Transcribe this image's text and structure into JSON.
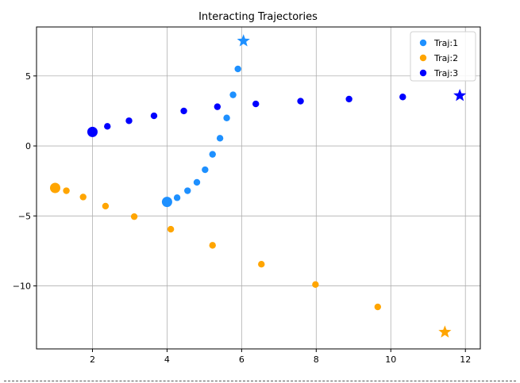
{
  "chart_data": {
    "type": "scatter",
    "title": "Interacting Trajectories",
    "xlabel": "",
    "ylabel": "",
    "xlim": [
      0.5,
      12.4
    ],
    "ylim": [
      -14.5,
      8.5
    ],
    "xticks": [
      2,
      4,
      6,
      8,
      10,
      12
    ],
    "yticks": [
      5,
      0,
      -5,
      -10
    ],
    "xtick_labels": [
      "2",
      "4",
      "6",
      "8",
      "10",
      "12"
    ],
    "ytick_labels": [
      "5",
      "0",
      "−5",
      "−10"
    ],
    "grid": true,
    "legend_position": "top-right",
    "series": [
      {
        "name": "Traj:1",
        "color": "#1e90ff",
        "start": [
          4.0,
          -4.0
        ],
        "end": [
          6.05,
          7.5
        ],
        "x": [
          4.27,
          4.55,
          4.8,
          5.02,
          5.22,
          5.42,
          5.6,
          5.77,
          5.9
        ],
        "y": [
          -3.7,
          -3.2,
          -2.6,
          -1.7,
          -0.6,
          0.55,
          2.0,
          3.65,
          5.5
        ]
      },
      {
        "name": "Traj:2",
        "color": "#ffa500",
        "start": [
          1.0,
          -3.0
        ],
        "end": [
          11.45,
          -13.3
        ],
        "x": [
          1.3,
          1.75,
          2.35,
          3.12,
          4.1,
          5.22,
          6.53,
          7.98,
          9.65
        ],
        "y": [
          -3.2,
          -3.65,
          -4.3,
          -5.05,
          -5.95,
          -7.1,
          -8.45,
          -9.9,
          -11.5
        ]
      },
      {
        "name": "Traj:3",
        "color": "#0000ff",
        "start": [
          2.0,
          1.0
        ],
        "end": [
          11.85,
          3.6
        ],
        "x": [
          2.4,
          2.98,
          3.65,
          4.45,
          5.35,
          6.38,
          7.58,
          8.88,
          10.32
        ],
        "y": [
          1.4,
          1.8,
          2.15,
          2.5,
          2.8,
          3.0,
          3.2,
          3.35,
          3.5
        ]
      }
    ]
  }
}
